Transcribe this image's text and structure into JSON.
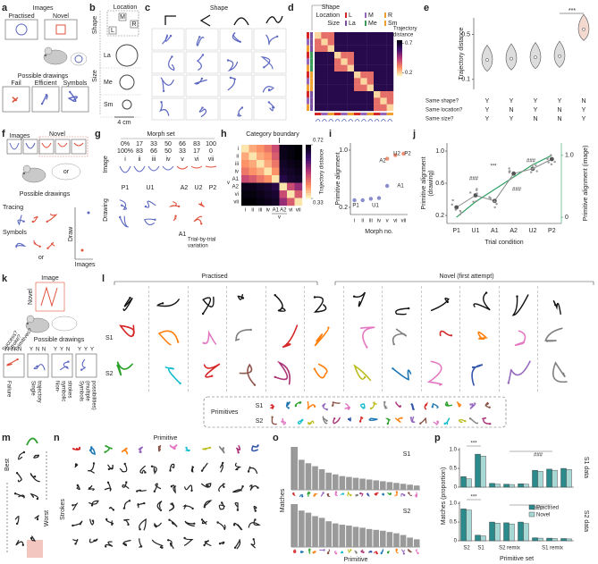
{
  "panels": {
    "a": {
      "label": "a",
      "images_title": "Images",
      "practised": "Practised",
      "novel": "Novel",
      "drawings_title": "Possible drawings",
      "fail": "Fail",
      "efficient": "Efficient",
      "symbols": "Symbols"
    },
    "b": {
      "label": "b",
      "shape": "Shape",
      "location": "Location",
      "loc_labels": [
        "M",
        "R",
        "L"
      ],
      "size": "Size",
      "sizes": [
        "La",
        "Me",
        "Sm"
      ],
      "scale": "4 cm"
    },
    "c": {
      "label": "c",
      "shape": "Shape"
    },
    "d": {
      "label": "d",
      "legend": [
        "Shape",
        "Location",
        "Size"
      ],
      "location_items": [
        "L",
        "M",
        "R"
      ],
      "location_colors": [
        "#d62728",
        "#9467bd",
        "#f0a030"
      ],
      "size_items": [
        "La",
        "Me",
        "Sm"
      ],
      "size_colors": [
        "#7b4fa0",
        "#3a9a5a",
        "#f0a030"
      ],
      "colorbar_title": [
        "Trajectory",
        "distance"
      ],
      "clim": [
        0.15,
        0.75
      ],
      "colorbar_ticks": [
        0.7,
        0.2
      ],
      "matrix": [
        [
          0.2,
          0.35,
          0.35,
          0.65,
          0.65,
          0.65,
          0.65,
          0.65,
          0.65,
          0.65,
          0.65,
          0.65
        ],
        [
          0.35,
          0.2,
          0.35,
          0.65,
          0.65,
          0.65,
          0.65,
          0.65,
          0.65,
          0.65,
          0.65,
          0.65
        ],
        [
          0.35,
          0.35,
          0.2,
          0.65,
          0.65,
          0.65,
          0.65,
          0.65,
          0.65,
          0.65,
          0.65,
          0.65
        ],
        [
          0.65,
          0.65,
          0.65,
          0.2,
          0.35,
          0.35,
          0.65,
          0.65,
          0.65,
          0.65,
          0.65,
          0.65
        ],
        [
          0.65,
          0.65,
          0.65,
          0.35,
          0.2,
          0.35,
          0.65,
          0.65,
          0.65,
          0.65,
          0.65,
          0.65
        ],
        [
          0.65,
          0.65,
          0.65,
          0.35,
          0.35,
          0.2,
          0.65,
          0.65,
          0.65,
          0.65,
          0.65,
          0.65
        ],
        [
          0.65,
          0.65,
          0.65,
          0.65,
          0.65,
          0.65,
          0.2,
          0.35,
          0.35,
          0.65,
          0.65,
          0.65
        ],
        [
          0.65,
          0.65,
          0.65,
          0.65,
          0.65,
          0.65,
          0.35,
          0.2,
          0.35,
          0.65,
          0.65,
          0.65
        ],
        [
          0.65,
          0.65,
          0.65,
          0.65,
          0.65,
          0.65,
          0.35,
          0.35,
          0.2,
          0.65,
          0.65,
          0.65
        ],
        [
          0.65,
          0.65,
          0.65,
          0.65,
          0.65,
          0.65,
          0.65,
          0.65,
          0.65,
          0.2,
          0.35,
          0.35
        ],
        [
          0.65,
          0.65,
          0.65,
          0.65,
          0.65,
          0.65,
          0.65,
          0.65,
          0.65,
          0.35,
          0.2,
          0.35
        ],
        [
          0.65,
          0.65,
          0.65,
          0.65,
          0.65,
          0.65,
          0.65,
          0.65,
          0.65,
          0.35,
          0.35,
          0.2
        ]
      ]
    },
    "e": {
      "label": "e",
      "ylabel": "Trajectory distance",
      "log_scale": true,
      "ylim": [
        0.07,
        0.9
      ],
      "yticks": [
        0.1,
        0.5
      ],
      "significance": "***",
      "medians": [
        0.2,
        0.21,
        0.22,
        0.23,
        0.6
      ],
      "rows": [
        {
          "label": "Same shape?",
          "values": [
            "Y",
            "Y",
            "Y",
            "Y",
            "N"
          ]
        },
        {
          "label": "Same location?",
          "values": [
            "Y",
            "N",
            "Y",
            "N",
            "Y"
          ]
        },
        {
          "label": "Same size?",
          "values": [
            "Y",
            "Y",
            "N",
            "N",
            "Y"
          ]
        }
      ]
    },
    "f": {
      "label": "f",
      "images": "Images",
      "novel": "Novel",
      "or1": "or",
      "drawings_title": "Possible drawings",
      "tracing": "Tracing",
      "symbols": "Symbols",
      "or2": "or",
      "draw": "Draw",
      "images2": "Images"
    },
    "g": {
      "label": "g",
      "morph_title": "Morph set",
      "pct_top": [
        "0%",
        "17",
        "33",
        "50",
        "66",
        "83",
        "100"
      ],
      "pct_bottom": [
        "100%",
        "83",
        "66",
        "50",
        "33",
        "17",
        "0"
      ],
      "image": "Image",
      "numerals": [
        "i",
        "ii",
        "iii",
        "iv",
        "v",
        "vi",
        "vii"
      ],
      "drawing": "Drawing",
      "drawing_labels": [
        "P1",
        "U1",
        "A2",
        "U2",
        "P2",
        "A1"
      ],
      "variation": [
        "Trial-by-trial",
        "variation"
      ]
    },
    "h": {
      "label": "h",
      "boundary": "Category boundary",
      "row_labels": [
        "i",
        "ii",
        "iii",
        "iv",
        "A1",
        "A2",
        "vi",
        "vii"
      ],
      "group_label": "v",
      "colorbar_title": "Trajectory distance",
      "clim": [
        0.33,
        0.72
      ],
      "colorbar_ticks": [
        0.72,
        0.33
      ],
      "matrix": [
        [
          0.35,
          0.4,
          0.42,
          0.45,
          0.5,
          0.7,
          0.71,
          0.72
        ],
        [
          0.4,
          0.35,
          0.4,
          0.42,
          0.48,
          0.7,
          0.71,
          0.72
        ],
        [
          0.42,
          0.4,
          0.35,
          0.4,
          0.45,
          0.69,
          0.7,
          0.71
        ],
        [
          0.45,
          0.42,
          0.4,
          0.35,
          0.42,
          0.68,
          0.69,
          0.7
        ],
        [
          0.5,
          0.48,
          0.45,
          0.42,
          0.35,
          0.66,
          0.68,
          0.69
        ],
        [
          0.7,
          0.7,
          0.69,
          0.68,
          0.66,
          0.35,
          0.5,
          0.55
        ],
        [
          0.71,
          0.71,
          0.7,
          0.69,
          0.68,
          0.5,
          0.35,
          0.48
        ],
        [
          0.72,
          0.72,
          0.71,
          0.7,
          0.69,
          0.55,
          0.48,
          0.35
        ]
      ]
    },
    "i": {
      "label": "i",
      "ylabel": "Primitive alignment",
      "ylim": [
        0.1,
        1.1
      ],
      "yticks": [
        0.2,
        {
          "value": 1,
          "label": "1.0"
        }
      ],
      "categories": [
        "i",
        "ii",
        "iii",
        "iv",
        "v",
        "vi",
        "vii"
      ],
      "xlabel": "Morph no.",
      "series": [
        {
          "color": "#6a6fc0",
          "values": [
            0.3,
            0.3,
            0.32,
            0.33,
            0.5,
            null,
            null
          ]
        },
        {
          "color": "#e8734f",
          "values": [
            null,
            null,
            null,
            null,
            0.88,
            0.93,
            0.95
          ]
        }
      ],
      "point_labels": [
        "P1",
        "U1",
        "A1",
        "A2",
        "U2",
        "P2"
      ]
    },
    "j": {
      "label": "j",
      "ylabel": [
        "Primitive alignment",
        "(drawing)"
      ],
      "ylim": [
        0.1,
        1.1
      ],
      "yticks": [
        0.2,
        0.6,
        {
          "value": 1,
          "label": "1.0"
        }
      ],
      "y2label": "Primitive alignment (image)",
      "y2lim": [
        -0.1,
        1.2
      ],
      "y2ticks": [
        0,
        {
          "value": 1,
          "label": "1.0"
        }
      ],
      "categories": [
        "P1",
        "U1",
        "A1",
        "A2",
        "U2",
        "P2"
      ],
      "xlabel": "Trial condition",
      "drawing": [
        0.3,
        0.45,
        0.38,
        0.72,
        0.78,
        0.9
      ],
      "image": [
        0,
        0.25,
        0.45,
        0.65,
        0.85,
        1.0
      ],
      "annotations": [
        "###",
        "***",
        "###",
        "###"
      ]
    },
    "k": {
      "label": "k",
      "image": "Image",
      "novel": "Novel",
      "criteria": [
        "Success?",
        "Stroke?",
        "Primitives?"
      ],
      "drawings_title": "Possible drawings",
      "columns": [
        {
          "code": [
            "N",
            "N",
            "N"
          ],
          "label": [
            "Failure"
          ]
        },
        {
          "code": [
            "Y",
            "N",
            "N"
          ],
          "label": [
            "Single",
            "trajectory"
          ]
        },
        {
          "code": [
            "Y",
            "Y",
            "N"
          ],
          "label": [
            "Non-",
            "symbolic",
            "strokes"
          ]
        },
        {
          "code": [
            "Y",
            "Y",
            "Y"
          ],
          "label": [
            "Symbols",
            "(multiple",
            "possibilities)"
          ]
        }
      ]
    },
    "l": {
      "label": "l",
      "practised": "Practised",
      "novel": "Novel (first attempt)",
      "s1": "S1",
      "s2": "S2",
      "primitives": "Primitives",
      "prim_s1": "S1",
      "prim_s2": "S2"
    },
    "m": {
      "label": "m",
      "best": "Best",
      "worst": "Worst"
    },
    "n": {
      "label": "n",
      "primitive": "Primitive",
      "strokes": "Strokes"
    },
    "o": {
      "label": "o",
      "ylabel": "Matches",
      "xlabel": "Primitive",
      "ylim": [
        0,
        100
      ],
      "charts": [
        {
          "name": "S1",
          "values": [
            100,
            70,
            62,
            55,
            48,
            40,
            36,
            32,
            30,
            28,
            26,
            24,
            22,
            20,
            18,
            16,
            14,
            12,
            10
          ]
        },
        {
          "name": "S2",
          "values": [
            100,
            85,
            80,
            72,
            68,
            60,
            55,
            52,
            50,
            47,
            45,
            42,
            40,
            38,
            35,
            32,
            28,
            22,
            18
          ]
        }
      ]
    },
    "p": {
      "label": "p",
      "ylabel": "Matches (proportion)",
      "xlabel": "Primitive set",
      "ylim": [
        0,
        1.05
      ],
      "yticks": [
        0,
        0.5,
        {
          "value": 1,
          "label": "1.0"
        }
      ],
      "legend": [
        {
          "name": "Practised",
          "color": "#2a8a8c"
        },
        {
          "name": "Novel",
          "color": "#a8d8d5"
        }
      ],
      "charts": [
        {
          "name": "S1 data",
          "annotations": [
            "***",
            "###"
          ],
          "groups": [
            {
              "label": "S2",
              "practised": [
                0.28
              ],
              "novel": [
                0.22
              ]
            },
            {
              "label": "S1",
              "practised": [
                0.88
              ],
              "novel": [
                0.83
              ]
            },
            {
              "label": "S2 remix",
              "practised": [
                0.1,
                0.08,
                0.09
              ],
              "novel": [
                0.08,
                0.07,
                0.08
              ]
            },
            {
              "label": "S1 remix",
              "practised": [
                0.45,
                0.48,
                0.5
              ],
              "novel": [
                0.42,
                0.45,
                0.47
              ]
            }
          ]
        },
        {
          "name": "S2 data",
          "annotations": [
            "***",
            "###"
          ],
          "groups": [
            {
              "label": "S2",
              "practised": [
                0.85
              ],
              "novel": [
                0.82
              ]
            },
            {
              "label": "S1",
              "practised": [
                0.15
              ],
              "novel": [
                0.13
              ]
            },
            {
              "label": "S2 remix",
              "practised": [
                0.5,
                0.48,
                0.5
              ],
              "novel": [
                0.47,
                0.45,
                0.46
              ]
            },
            {
              "label": "S1 remix",
              "practised": [
                0.08,
                0.07,
                0.06
              ],
              "novel": [
                0.07,
                0.06,
                0.05
              ]
            }
          ]
        }
      ]
    }
  }
}
